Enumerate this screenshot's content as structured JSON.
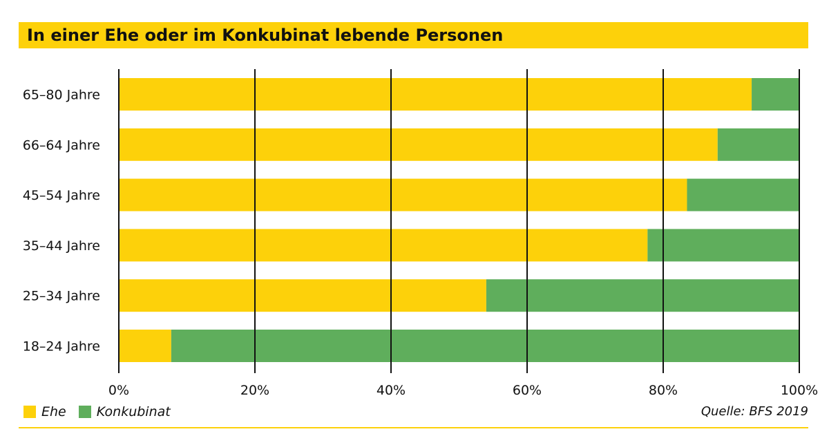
{
  "colors": {
    "ehe": "#FDD10A",
    "konkubinat": "#5FAE5C",
    "grid": "#111111",
    "accent": "#FDD10A"
  },
  "chart_data": {
    "type": "bar",
    "orientation": "horizontal",
    "stacked": true,
    "title": "In einer Ehe oder im Konkubinat lebende Personen",
    "categories": [
      "65–80 Jahre",
      "66–64 Jahre",
      "45–54 Jahre",
      "35–44 Jahre",
      "25–34 Jahre",
      "18–24 Jahre"
    ],
    "series": [
      {
        "name": "Ehe",
        "values": [
          93,
          88,
          83.5,
          77.7,
          54,
          7.7
        ]
      },
      {
        "name": "Konkubinat",
        "values": [
          7,
          12,
          16.5,
          22.3,
          46,
          92.3
        ]
      }
    ],
    "xlim": [
      0,
      100
    ],
    "xticks": [
      0,
      20,
      40,
      60,
      80,
      100
    ],
    "xtick_labels": [
      "0%",
      "20%",
      "40%",
      "60%",
      "80%",
      "100%"
    ],
    "grid": true,
    "legend": "bottom-left",
    "source": "Quelle: BFS 2019"
  }
}
